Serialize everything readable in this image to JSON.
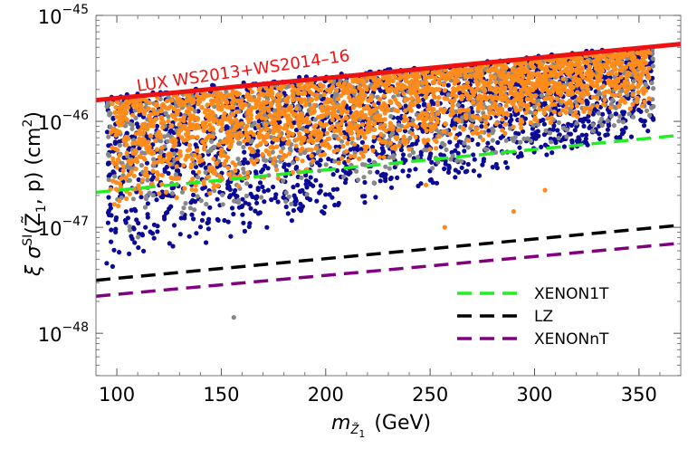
{
  "chart_data": {
    "type": "scatter",
    "title": "",
    "xlabel": {
      "base": "m",
      "sub_base": "Z̃",
      "sub_index": "1",
      "unit": "(GeV)"
    },
    "ylabel": {
      "prefix": "ξ σ",
      "sup": "SI",
      "args": "(Z̃",
      "sub": "1",
      "args_end": ", p) (cm",
      "unit_exp": "2",
      "close": ")"
    },
    "xlim": [
      90,
      370
    ],
    "ylim_log10": [
      -48.4,
      -45
    ],
    "y_scale": "log",
    "x_ticks": [
      100,
      150,
      200,
      250,
      300,
      350
    ],
    "x_tick_labels": [
      "100",
      "150",
      "200",
      "250",
      "300",
      "350"
    ],
    "y_ticks_log10": [
      -48,
      -47,
      -46,
      -45
    ],
    "y_tick_labels": [
      {
        "base": "10",
        "exp": "−48"
      },
      {
        "base": "10",
        "exp": "−47"
      },
      {
        "base": "10",
        "exp": "−46"
      },
      {
        "base": "10",
        "exp": "−45"
      }
    ],
    "grid": false,
    "colors": {
      "navy": "#0a0a96",
      "gray": "#888888",
      "orange": "#ff8c1a",
      "lux": "#ee1111",
      "xenon1t": "#22ee22",
      "lz": "#000000",
      "xenonnt": "#800080"
    },
    "scatter_band": {
      "x_range": [
        95,
        357
      ],
      "upper_log10_at_x_min": -45.75,
      "upper_log10_at_x_max": -45.28,
      "lower_log10_at_x_min": -47.4,
      "lower_log10_at_x_max": -46.1,
      "outliers": [
        {
          "x": 156,
          "y_log10": -47.85,
          "color": "gray"
        },
        {
          "x": 305,
          "y_log10": -46.65,
          "color": "orange"
        },
        {
          "x": 290,
          "y_log10": -46.85,
          "color": "orange"
        },
        {
          "x": 257,
          "y_log10": -47.0,
          "color": "orange"
        },
        {
          "x": 248,
          "y_log10": -46.6,
          "color": "orange"
        }
      ]
    },
    "curves": [
      {
        "name": "LUX WS2013+WS2014–16",
        "style": "solid",
        "color": "lux",
        "x": [
          90,
          370
        ],
        "y_log10": [
          -45.8,
          -45.27
        ]
      },
      {
        "name": "XENON1T",
        "style": "dashed",
        "color": "xenon1t",
        "x": [
          90,
          370
        ],
        "y_log10": [
          -46.67,
          -46.13
        ]
      },
      {
        "name": "LZ",
        "style": "dashed",
        "color": "lz",
        "x": [
          90,
          370
        ],
        "y_log10": [
          -47.5,
          -46.98
        ]
      },
      {
        "name": "XENONnT",
        "style": "dashed",
        "color": "xenonnt",
        "x": [
          90,
          370
        ],
        "y_log10": [
          -47.65,
          -47.15
        ]
      }
    ],
    "legend": {
      "position": "bottom-right",
      "entries": [
        "XENON1T",
        "LZ",
        "XENONnT"
      ],
      "entry_colors": [
        "xenon1t",
        "lz",
        "xenonnt"
      ]
    },
    "annotation": "LUX WS2013+WS2014–16"
  }
}
